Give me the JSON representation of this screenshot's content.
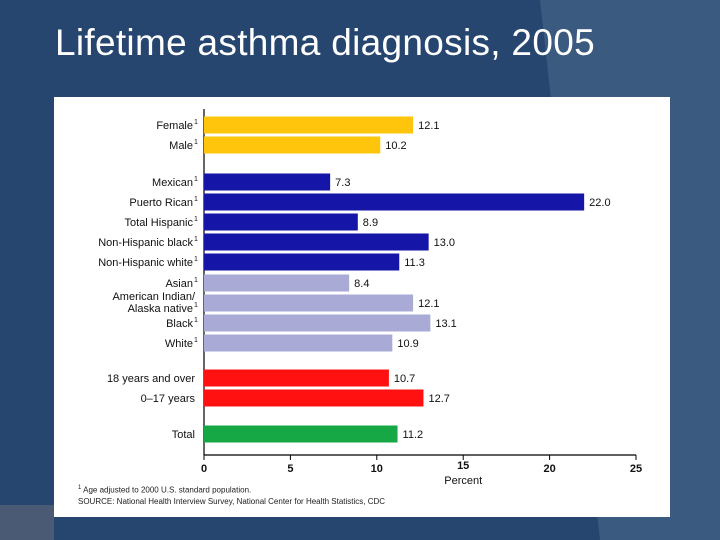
{
  "slide": {
    "title": "Lifetime asthma diagnosis, 2005"
  },
  "colors": {
    "background": "#27466f",
    "sex": "#ffc40c",
    "ethnicity": "#1515a8",
    "race": "#aaaad6",
    "age": "#ff1111",
    "total": "#15a845"
  },
  "chart_data": {
    "type": "bar",
    "orientation": "horizontal",
    "title": "",
    "xlabel": "Percent",
    "ylabel": "",
    "xlim": [
      0,
      25
    ],
    "xticks": [
      "0",
      "5",
      "10",
      "15",
      "20",
      "25"
    ],
    "categories": [
      {
        "label": "Female",
        "sup": "1",
        "value": 12.1,
        "value_label": "12.1",
        "group": "sex"
      },
      {
        "label": "Male",
        "sup": "1",
        "value": 10.2,
        "value_label": "10.2",
        "group": "sex"
      },
      {
        "label": "Mexican",
        "sup": "1",
        "value": 7.3,
        "value_label": "7.3",
        "group": "ethnicity"
      },
      {
        "label": "Puerto Rican",
        "sup": "1",
        "value": 22.0,
        "value_label": "22.0",
        "group": "ethnicity"
      },
      {
        "label": "Total Hispanic",
        "sup": "1",
        "value": 8.9,
        "value_label": "8.9",
        "group": "ethnicity"
      },
      {
        "label": "Non-Hispanic black",
        "sup": "1",
        "value": 13.0,
        "value_label": "13.0",
        "group": "ethnicity"
      },
      {
        "label": "Non-Hispanic white",
        "sup": "1",
        "value": 11.3,
        "value_label": "11.3",
        "group": "ethnicity"
      },
      {
        "label": "Asian",
        "sup": "1",
        "value": 8.4,
        "value_label": "8.4",
        "group": "race"
      },
      {
        "label": "American Indian/",
        "label2": "Alaska native",
        "sup": "1",
        "value": 12.1,
        "value_label": "12.1",
        "group": "race"
      },
      {
        "label": "Black",
        "sup": "1",
        "value": 13.1,
        "value_label": "13.1",
        "group": "race"
      },
      {
        "label": "White",
        "sup": "1",
        "value": 10.9,
        "value_label": "10.9",
        "group": "race"
      },
      {
        "label": "18 years and over",
        "sup": "",
        "value": 10.7,
        "value_label": "10.7",
        "group": "age"
      },
      {
        "label": "0–17 years",
        "sup": "",
        "value": 12.7,
        "value_label": "12.7",
        "group": "age"
      },
      {
        "label": "Total",
        "sup": "",
        "value": 11.2,
        "value_label": "11.2",
        "group": "total"
      }
    ],
    "footnotes": {
      "note1_marker": "1",
      "note1_text": "Age adjusted to 2000 U.S. standard population.",
      "source": "SOURCE: National Health Interview Survey, National Center for Health Statistics, CDC"
    }
  }
}
